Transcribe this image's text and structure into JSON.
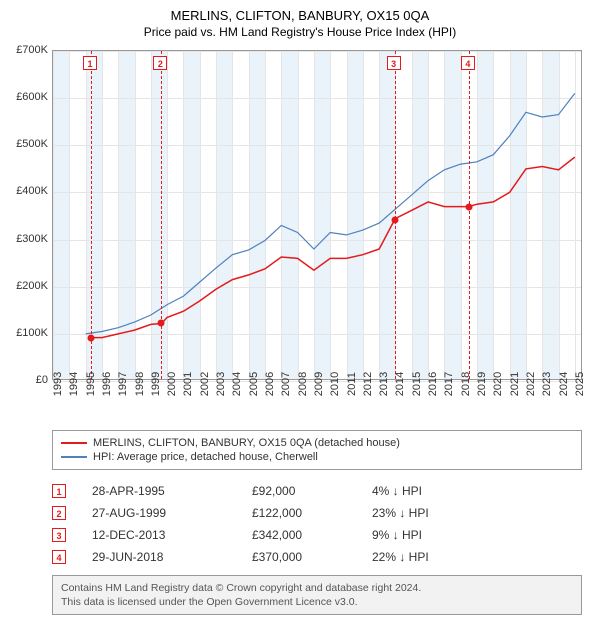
{
  "header": {
    "address": "MERLINS, CLIFTON, BANBURY, OX15 0QA",
    "subtitle": "Price paid vs. HM Land Registry's House Price Index (HPI)"
  },
  "chart": {
    "type": "line",
    "background_color": "#ffffff",
    "grid_color": "#e5e5e5",
    "band_color": "#eaf2fa",
    "border_color": "#999999",
    "yaxis": {
      "min": 0,
      "max": 700000,
      "step": 100000,
      "labels": [
        "£0",
        "£100K",
        "£200K",
        "£300K",
        "£400K",
        "£500K",
        "£600K",
        "£700K"
      ],
      "fontsize": 11
    },
    "xaxis": {
      "min": 1993,
      "max": 2025.5,
      "step": 1,
      "labels": [
        "1993",
        "1994",
        "1995",
        "1996",
        "1997",
        "1998",
        "1999",
        "2000",
        "2001",
        "2002",
        "2003",
        "2004",
        "2005",
        "2006",
        "2007",
        "2008",
        "2009",
        "2010",
        "2011",
        "2012",
        "2013",
        "2014",
        "2015",
        "2016",
        "2017",
        "2018",
        "2019",
        "2020",
        "2021",
        "2022",
        "2023",
        "2024",
        "2025"
      ],
      "fontsize": 11
    },
    "series": [
      {
        "name": "MERLINS, CLIFTON, BANBURY, OX15 0QA (detached house)",
        "color": "#e41a1c",
        "line_width": 1.5,
        "data": [
          [
            1995.33,
            92000
          ],
          [
            1996,
            92000
          ],
          [
            1997,
            100000
          ],
          [
            1998,
            108000
          ],
          [
            1999,
            120000
          ],
          [
            1999.65,
            122000
          ],
          [
            2000,
            135000
          ],
          [
            2001,
            148000
          ],
          [
            2002,
            170000
          ],
          [
            2003,
            195000
          ],
          [
            2004,
            215000
          ],
          [
            2005,
            225000
          ],
          [
            2006,
            238000
          ],
          [
            2007,
            263000
          ],
          [
            2008,
            260000
          ],
          [
            2009,
            235000
          ],
          [
            2010,
            260000
          ],
          [
            2011,
            260000
          ],
          [
            2012,
            268000
          ],
          [
            2013,
            280000
          ],
          [
            2013.95,
            342000
          ],
          [
            2014,
            345000
          ],
          [
            2015,
            362000
          ],
          [
            2016,
            380000
          ],
          [
            2017,
            370000
          ],
          [
            2018,
            370000
          ],
          [
            2018.5,
            370000
          ],
          [
            2019,
            375000
          ],
          [
            2020,
            380000
          ],
          [
            2021,
            400000
          ],
          [
            2022,
            450000
          ],
          [
            2023,
            455000
          ],
          [
            2024,
            448000
          ],
          [
            2025,
            475000
          ]
        ]
      },
      {
        "name": "HPI: Average price, detached house, Cherwell",
        "color": "#4f81bd",
        "line_width": 1.2,
        "data": [
          [
            1995,
            100000
          ],
          [
            1996,
            105000
          ],
          [
            1997,
            113000
          ],
          [
            1998,
            125000
          ],
          [
            1999,
            140000
          ],
          [
            2000,
            162000
          ],
          [
            2001,
            180000
          ],
          [
            2002,
            210000
          ],
          [
            2003,
            240000
          ],
          [
            2004,
            268000
          ],
          [
            2005,
            278000
          ],
          [
            2006,
            298000
          ],
          [
            2007,
            330000
          ],
          [
            2008,
            315000
          ],
          [
            2009,
            280000
          ],
          [
            2010,
            315000
          ],
          [
            2011,
            310000
          ],
          [
            2012,
            320000
          ],
          [
            2013,
            335000
          ],
          [
            2014,
            365000
          ],
          [
            2015,
            395000
          ],
          [
            2016,
            425000
          ],
          [
            2017,
            448000
          ],
          [
            2018,
            460000
          ],
          [
            2019,
            465000
          ],
          [
            2020,
            480000
          ],
          [
            2021,
            520000
          ],
          [
            2022,
            570000
          ],
          [
            2023,
            560000
          ],
          [
            2024,
            565000
          ],
          [
            2025,
            610000
          ]
        ]
      }
    ],
    "markers": [
      {
        "n": "1",
        "x": 1995.33,
        "y": 92000,
        "color": "#e41a1c"
      },
      {
        "n": "2",
        "x": 1999.65,
        "y": 122000,
        "color": "#e41a1c"
      },
      {
        "n": "3",
        "x": 2013.95,
        "y": 342000,
        "color": "#e41a1c"
      },
      {
        "n": "4",
        "x": 2018.5,
        "y": 370000,
        "color": "#e41a1c"
      }
    ]
  },
  "legend": {
    "items": [
      {
        "label": "MERLINS, CLIFTON, BANBURY, OX15 0QA (detached house)",
        "color": "#e41a1c"
      },
      {
        "label": "HPI: Average price, detached house, Cherwell",
        "color": "#4f81bd"
      }
    ]
  },
  "table": {
    "rows": [
      {
        "n": "1",
        "date": "28-APR-1995",
        "price": "£92,000",
        "pct": "4% ↓ HPI"
      },
      {
        "n": "2",
        "date": "27-AUG-1999",
        "price": "£122,000",
        "pct": "23% ↓ HPI"
      },
      {
        "n": "3",
        "date": "12-DEC-2013",
        "price": "£342,000",
        "pct": "9% ↓ HPI"
      },
      {
        "n": "4",
        "date": "29-JUN-2018",
        "price": "£370,000",
        "pct": "22% ↓ HPI"
      }
    ]
  },
  "footer": {
    "line1": "Contains HM Land Registry data © Crown copyright and database right 2024.",
    "line2": "This data is licensed under the Open Government Licence v3.0."
  }
}
